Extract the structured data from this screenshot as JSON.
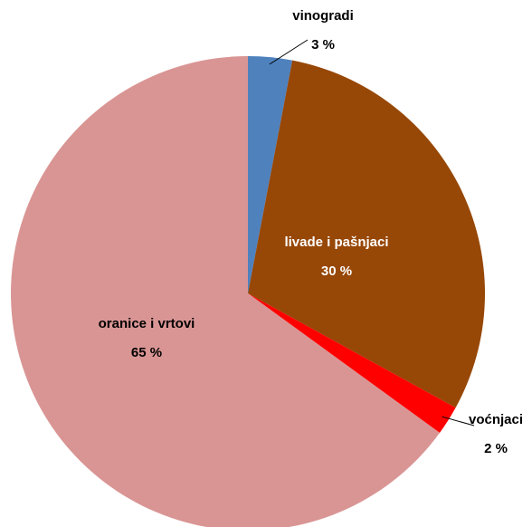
{
  "chart_data": {
    "type": "pie",
    "categories": [
      "vinogradi",
      "livade i pašnjaci",
      "voćnjaci",
      "oranice i vrtovi"
    ],
    "values": [
      3,
      30,
      2,
      65
    ],
    "value_labels": [
      "3 %",
      "30 %",
      "2 %",
      "65 %"
    ],
    "colors": [
      "#4f81bd",
      "#974706",
      "#ff0000",
      "#d99594"
    ]
  }
}
